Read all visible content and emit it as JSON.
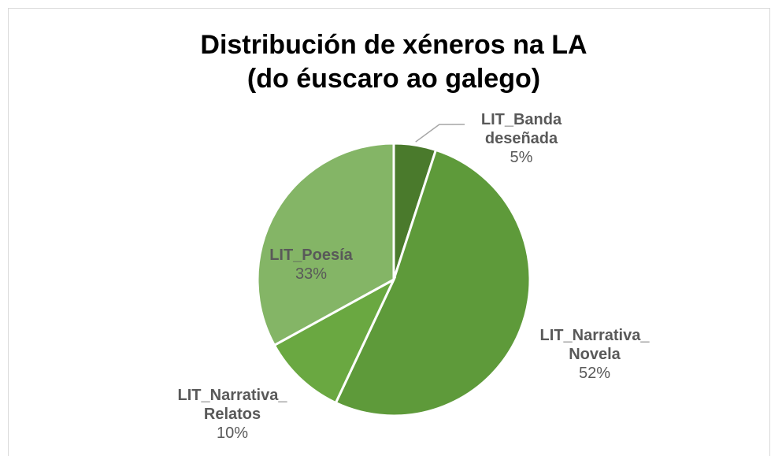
{
  "chart_data": {
    "type": "pie",
    "title": "Distribución de xéneros na LA\n(do éuscaro ao galego)",
    "categories": [
      "LIT_Banda\ndeseñada",
      "LIT_Narrativa_\nNovela",
      "LIT_Narrativa_\nRelatos",
      "LIT_Poesía"
    ],
    "values": [
      5,
      52,
      10,
      33
    ],
    "value_labels": [
      "5%",
      "52%",
      "10%",
      "33%"
    ],
    "colors": [
      "#4a7a2c",
      "#5e9a3a",
      "#6aa841",
      "#84b566"
    ]
  }
}
